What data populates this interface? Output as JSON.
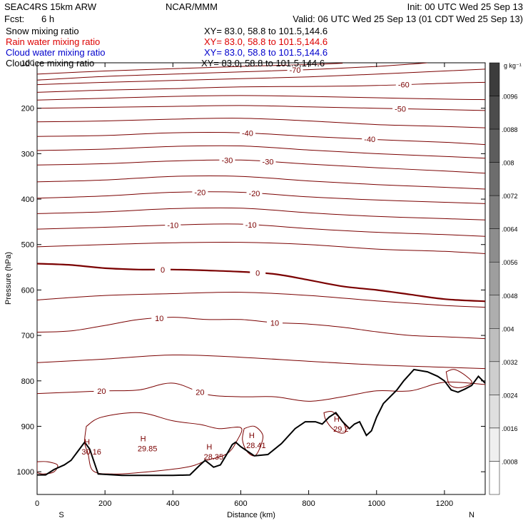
{
  "header": {
    "model": "SEAC4RS 15km ARW",
    "org": "NCAR/MMM",
    "init": "Init: 00 UTC Wed 25 Sep 13",
    "fcst_label": "Fcst:",
    "fcst_value": "6 h",
    "valid": "Valid: 06 UTC Wed 25 Sep 13 (01 CDT Wed 25 Sep 13)"
  },
  "legend": [
    {
      "name": "Snow mixing ratio",
      "xy": "XY=  83.0, 58.8 to 101.5,144.6",
      "color": "#000000"
    },
    {
      "name": "Rain water mixing ratio",
      "xy": "XY=  83.0, 58.8 to 101.5,144.6",
      "color": "#dd0000"
    },
    {
      "name": "Cloud water mixing ratio",
      "xy": "XY=  83.0, 58.8 to 101.5,144.6",
      "color": "#0000cc"
    },
    {
      "name": "Cloud ice mixing ratio",
      "xy": "XY=  83.0, 58.8 to 101.5,144.6",
      "color": "#000000"
    }
  ],
  "colorbar": {
    "unit": "g kg⁻¹",
    "labels": [
      ".0096",
      ".0088",
      ".008",
      ".0072",
      ".0064",
      ".0056",
      ".0048",
      ".004",
      ".0032",
      ".0024",
      ".0016",
      ".0008"
    ],
    "values": [
      0.0096,
      0.0088,
      0.008,
      0.0072,
      0.0064,
      0.0056,
      0.0048,
      0.004,
      0.0032,
      0.0024,
      0.0016,
      0.0008
    ]
  },
  "chart_data": {
    "type": "contour",
    "xlabel": "Distance (km)",
    "ylabel": "Pressure (hPa)",
    "xlim": [
      0,
      1320
    ],
    "ylim": [
      1050,
      100
    ],
    "x_ticks": [
      0,
      200,
      400,
      600,
      800,
      1000,
      1200
    ],
    "y_ticks": [
      100,
      200,
      300,
      400,
      500,
      600,
      700,
      800,
      900,
      1000
    ],
    "x_tick_labels": [
      "0",
      "200",
      "400",
      "600",
      "800",
      "1000",
      "1200"
    ],
    "y_tick_labels": [
      "100",
      "200",
      "300",
      "400",
      "500",
      "600",
      "700",
      "800",
      "900",
      "1000"
    ],
    "endpoint_labels": {
      "left": "S",
      "right": "N"
    },
    "isotherm_color": "#7a0000",
    "terrain_color": "#000000",
    "isotherms": [
      {
        "value": 0,
        "label": "0",
        "bold": true,
        "points": [
          [
            0,
            542
          ],
          [
            100,
            545
          ],
          [
            200,
            552
          ],
          [
            300,
            555
          ],
          [
            400,
            555
          ],
          [
            500,
            557
          ],
          [
            600,
            560
          ],
          [
            700,
            565
          ],
          [
            800,
            578
          ],
          [
            900,
            592
          ],
          [
            1000,
            600
          ],
          [
            1100,
            610
          ],
          [
            1200,
            620
          ],
          [
            1320,
            625
          ]
        ]
      },
      {
        "value": 10,
        "label": "10",
        "bold": false,
        "points": [
          [
            0,
            693
          ],
          [
            100,
            690
          ],
          [
            200,
            678
          ],
          [
            300,
            665
          ],
          [
            400,
            660
          ],
          [
            500,
            665
          ],
          [
            600,
            665
          ],
          [
            700,
            672
          ],
          [
            800,
            675
          ],
          [
            900,
            682
          ],
          [
            1000,
            692
          ],
          [
            1100,
            700
          ],
          [
            1200,
            703
          ],
          [
            1320,
            707
          ]
        ]
      },
      {
        "value": 20,
        "label": "20",
        "bold": false,
        "points": [
          [
            0,
            828
          ],
          [
            100,
            825
          ],
          [
            200,
            822
          ],
          [
            300,
            820
          ],
          [
            400,
            805
          ],
          [
            500,
            830
          ],
          [
            600,
            835
          ],
          [
            700,
            835
          ],
          [
            800,
            845
          ],
          [
            900,
            835
          ],
          [
            1000,
            822
          ],
          [
            1100,
            822
          ],
          [
            1200,
            803
          ],
          [
            1320,
            808
          ]
        ]
      },
      {
        "value": -10,
        "label": "-10",
        "bold": false,
        "points": [
          [
            0,
            466
          ],
          [
            200,
            462
          ],
          [
            400,
            457
          ],
          [
            600,
            455
          ],
          [
            800,
            465
          ],
          [
            1000,
            473
          ],
          [
            1200,
            478
          ],
          [
            1320,
            482
          ]
        ]
      },
      {
        "value": -20,
        "label": "-20",
        "bold": false,
        "points": [
          [
            0,
            398
          ],
          [
            200,
            393
          ],
          [
            400,
            385
          ],
          [
            600,
            385
          ],
          [
            800,
            395
          ],
          [
            1000,
            402
          ],
          [
            1200,
            407
          ],
          [
            1320,
            410
          ]
        ]
      },
      {
        "value": -30,
        "label": "-30",
        "bold": false,
        "points": [
          [
            0,
            325
          ],
          [
            200,
            322
          ],
          [
            400,
            316
          ],
          [
            600,
            314
          ],
          [
            800,
            323
          ],
          [
            1000,
            331
          ],
          [
            1200,
            338
          ],
          [
            1320,
            343
          ]
        ]
      },
      {
        "value": -40,
        "label": "-40",
        "bold": false,
        "points": [
          [
            0,
            262
          ],
          [
            200,
            260
          ],
          [
            400,
            254
          ],
          [
            600,
            254
          ],
          [
            800,
            262
          ],
          [
            1000,
            269
          ],
          [
            1200,
            275
          ],
          [
            1320,
            280
          ]
        ]
      },
      {
        "value": -50,
        "label": "-50",
        "bold": false,
        "points": [
          [
            0,
            200
          ],
          [
            200,
            198
          ],
          [
            400,
            196
          ],
          [
            600,
            194
          ],
          [
            800,
            197
          ],
          [
            1000,
            200
          ],
          [
            1200,
            203
          ],
          [
            1320,
            205
          ]
        ]
      },
      {
        "value": -60,
        "label": "-60",
        "bold": false,
        "points": [
          [
            0,
            165
          ],
          [
            200,
            160
          ],
          [
            400,
            157
          ],
          [
            600,
            153
          ],
          [
            800,
            152
          ],
          [
            1000,
            150
          ],
          [
            1200,
            145
          ],
          [
            1320,
            143
          ]
        ]
      },
      {
        "value": -70,
        "label": "-70",
        "bold": false,
        "points": [
          [
            0,
            138
          ],
          [
            200,
            130
          ],
          [
            400,
            125
          ],
          [
            600,
            120
          ],
          [
            800,
            115
          ],
          [
            1000,
            108
          ],
          [
            1100,
            103
          ],
          [
            1150,
            100
          ]
        ]
      }
    ],
    "extra_isotherms": [
      [
        [
          0,
          125
        ],
        [
          200,
          118
        ],
        [
          400,
          113
        ],
        [
          600,
          108
        ],
        [
          800,
          104
        ],
        [
          900,
          101
        ]
      ],
      [
        [
          0,
          148
        ],
        [
          200,
          143
        ],
        [
          400,
          139
        ],
        [
          600,
          135
        ],
        [
          800,
          131
        ],
        [
          1000,
          125
        ],
        [
          1200,
          118
        ],
        [
          1320,
          114
        ]
      ],
      [
        [
          0,
          182
        ],
        [
          200,
          178
        ],
        [
          400,
          174
        ],
        [
          600,
          172
        ],
        [
          800,
          174
        ],
        [
          1000,
          177
        ],
        [
          1200,
          180
        ],
        [
          1320,
          181
        ]
      ],
      [
        [
          0,
          230
        ],
        [
          200,
          228
        ],
        [
          400,
          224
        ],
        [
          600,
          222
        ],
        [
          800,
          228
        ],
        [
          1000,
          236
        ],
        [
          1200,
          240
        ],
        [
          1320,
          243
        ]
      ],
      [
        [
          0,
          293
        ],
        [
          200,
          290
        ],
        [
          400,
          284
        ],
        [
          600,
          283
        ],
        [
          800,
          292
        ],
        [
          1000,
          300
        ],
        [
          1200,
          306
        ],
        [
          1320,
          310
        ]
      ],
      [
        [
          0,
          362
        ],
        [
          200,
          358
        ],
        [
          400,
          350
        ],
        [
          600,
          350
        ],
        [
          800,
          360
        ],
        [
          1000,
          368
        ],
        [
          1200,
          374
        ],
        [
          1320,
          378
        ]
      ],
      [
        [
          0,
          432
        ],
        [
          200,
          428
        ],
        [
          400,
          421
        ],
        [
          600,
          420
        ],
        [
          800,
          430
        ],
        [
          1000,
          438
        ],
        [
          1200,
          443
        ],
        [
          1320,
          446
        ]
      ],
      [
        [
          0,
          505
        ],
        [
          200,
          500
        ],
        [
          400,
          496
        ],
        [
          600,
          495
        ],
        [
          800,
          500
        ],
        [
          1000,
          510
        ],
        [
          1200,
          515
        ],
        [
          1320,
          520
        ]
      ],
      [
        [
          0,
          622
        ],
        [
          200,
          612
        ],
        [
          400,
          608
        ],
        [
          600,
          605
        ],
        [
          800,
          612
        ],
        [
          1000,
          624
        ],
        [
          1200,
          634
        ],
        [
          1320,
          638
        ]
      ],
      [
        [
          0,
          760
        ],
        [
          200,
          752
        ],
        [
          400,
          743
        ],
        [
          600,
          748
        ],
        [
          800,
          757
        ],
        [
          1000,
          765
        ],
        [
          1200,
          770
        ],
        [
          1320,
          773
        ]
      ]
    ],
    "pockets": [
      [
        [
          145,
          900
        ],
        [
          190,
          880
        ],
        [
          300,
          870
        ],
        [
          400,
          888
        ],
        [
          480,
          896
        ],
        [
          535,
          905
        ],
        [
          600,
          903
        ],
        [
          590,
          930
        ],
        [
          560,
          960
        ],
        [
          500,
          975
        ],
        [
          440,
          990
        ],
        [
          300,
          1002
        ],
        [
          220,
          1005
        ],
        [
          165,
          998
        ],
        [
          150,
          960
        ],
        [
          140,
          935
        ],
        [
          145,
          900
        ]
      ],
      [
        [
          610,
          905
        ],
        [
          640,
          900
        ],
        [
          665,
          920
        ],
        [
          655,
          950
        ],
        [
          640,
          965
        ],
        [
          618,
          955
        ],
        [
          605,
          930
        ],
        [
          610,
          905
        ]
      ],
      [
        [
          0,
          978
        ],
        [
          30,
          978
        ],
        [
          60,
          985
        ],
        [
          50,
          1000
        ],
        [
          20,
          1005
        ],
        [
          0,
          1002
        ]
      ],
      [
        [
          845,
          870
        ],
        [
          870,
          868
        ],
        [
          900,
          890
        ],
        [
          910,
          910
        ],
        [
          895,
          915
        ],
        [
          870,
          905
        ],
        [
          850,
          885
        ],
        [
          845,
          870
        ]
      ],
      [
        [
          1205,
          780
        ],
        [
          1230,
          775
        ],
        [
          1265,
          790
        ],
        [
          1280,
          805
        ],
        [
          1245,
          815
        ],
        [
          1215,
          808
        ],
        [
          1205,
          780
        ]
      ]
    ],
    "terrain": [
      [
        0,
        1007
      ],
      [
        25,
        1007
      ],
      [
        50,
        995
      ],
      [
        80,
        985
      ],
      [
        100,
        975
      ],
      [
        120,
        955
      ],
      [
        140,
        935
      ],
      [
        155,
        950
      ],
      [
        180,
        1005
      ],
      [
        250,
        1008
      ],
      [
        400,
        1008
      ],
      [
        450,
        1007
      ],
      [
        480,
        985
      ],
      [
        495,
        975
      ],
      [
        520,
        990
      ],
      [
        540,
        985
      ],
      [
        560,
        960
      ],
      [
        575,
        940
      ],
      [
        585,
        935
      ],
      [
        600,
        945
      ],
      [
        620,
        955
      ],
      [
        640,
        965
      ],
      [
        680,
        962
      ],
      [
        720,
        938
      ],
      [
        760,
        905
      ],
      [
        790,
        890
      ],
      [
        820,
        890
      ],
      [
        840,
        895
      ],
      [
        860,
        880
      ],
      [
        880,
        870
      ],
      [
        900,
        890
      ],
      [
        920,
        905
      ],
      [
        935,
        895
      ],
      [
        950,
        890
      ],
      [
        970,
        920
      ],
      [
        985,
        910
      ],
      [
        1000,
        880
      ],
      [
        1020,
        850
      ],
      [
        1060,
        820
      ],
      [
        1080,
        800
      ],
      [
        1110,
        775
      ],
      [
        1150,
        780
      ],
      [
        1180,
        790
      ],
      [
        1200,
        800
      ],
      [
        1220,
        820
      ],
      [
        1240,
        825
      ],
      [
        1260,
        818
      ],
      [
        1280,
        810
      ],
      [
        1300,
        790
      ],
      [
        1320,
        805
      ]
    ],
    "highs": [
      {
        "label": "H",
        "value": "30.16",
        "x": 160,
        "p": 962
      },
      {
        "label": "H",
        "value": "29.85",
        "x": 325,
        "p": 955
      },
      {
        "label": "H",
        "value": "28.35",
        "x": 520,
        "p": 973
      },
      {
        "label": "H",
        "value": "28.41",
        "x": 645,
        "p": 948
      },
      {
        "label": "H",
        "value": "29.2",
        "x": 895,
        "p": 912
      }
    ]
  }
}
